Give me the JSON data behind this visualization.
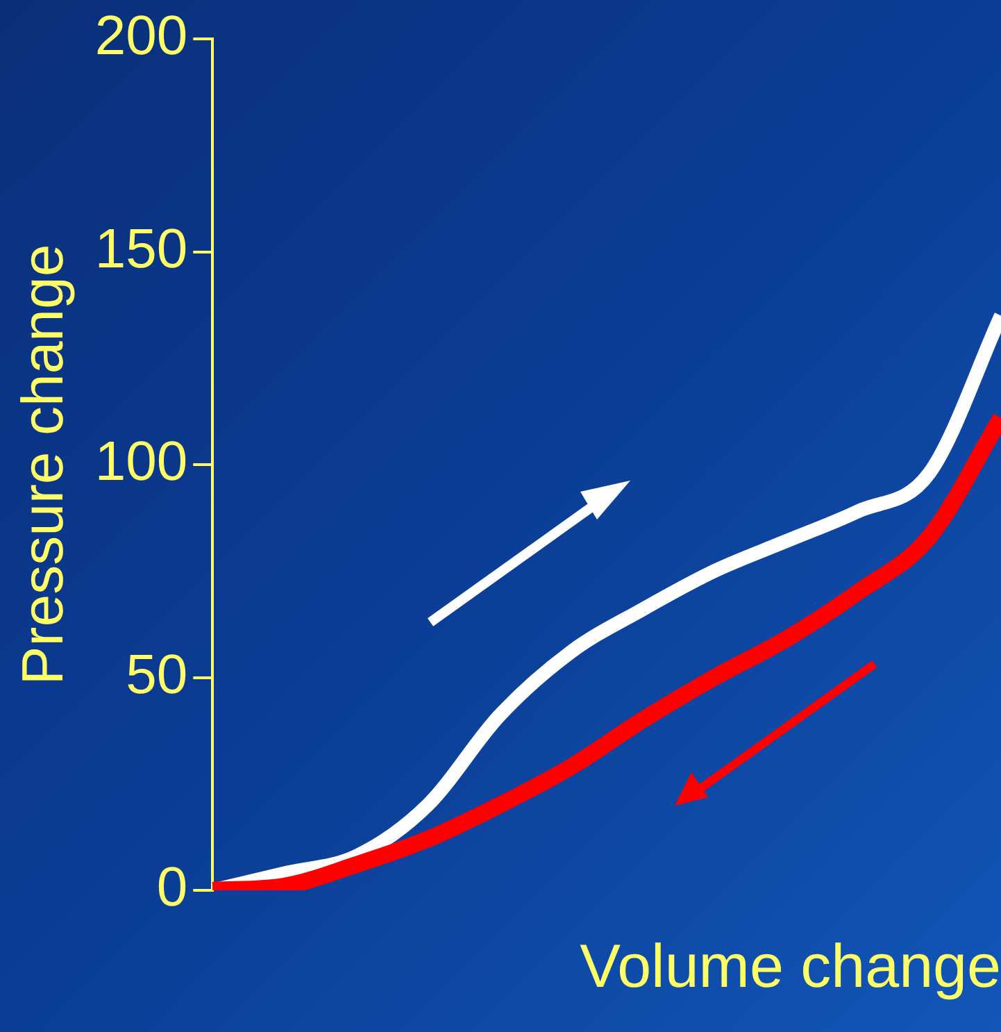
{
  "chart_data": {
    "type": "line",
    "xlabel": "Volume change",
    "ylabel": "Pressure change",
    "categories": [
      null,
      null,
      null,
      null,
      null,
      null,
      null,
      null,
      null,
      null,
      null,
      null
    ],
    "series": [
      {
        "color": "#ffffff",
        "values": [
          0,
          4,
          8,
          20,
          41,
          56,
          66,
          75,
          82,
          89,
          98,
          135
        ]
      },
      {
        "color": "#ff0000",
        "values": [
          0,
          1,
          6,
          12,
          20,
          29,
          40,
          50,
          59,
          70,
          83,
          111
        ]
      }
    ],
    "ylim": [
      0,
      200
    ],
    "yticks": [
      0,
      50,
      100,
      150,
      200
    ],
    "grid": false,
    "legend": false,
    "marker": "none",
    "line_style": "solid"
  }
}
